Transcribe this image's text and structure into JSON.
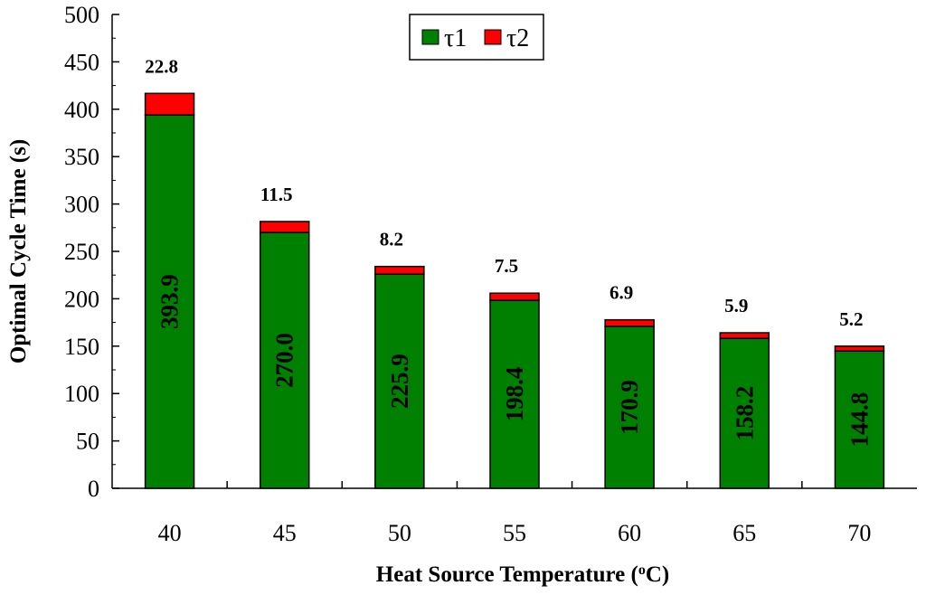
{
  "chart_data": {
    "type": "bar",
    "stacked": true,
    "title": "",
    "xlabel": "Heat Source Temperature",
    "xlabel_unit_prefix": "(",
    "xlabel_unit_sup": "o",
    "xlabel_unit_suffix": "C)",
    "ylabel": "Optimal Cycle Time (s)",
    "ylim": [
      0,
      500
    ],
    "ytick_step": 50,
    "yticks": [
      "0",
      "50",
      "100",
      "150",
      "200",
      "250",
      "300",
      "350",
      "400",
      "450",
      "500"
    ],
    "categories": [
      "40",
      "45",
      "50",
      "55",
      "60",
      "65",
      "70"
    ],
    "series": [
      {
        "name": "τ1",
        "color": "#008000",
        "values": [
          393.9,
          270.0,
          225.9,
          198.4,
          170.9,
          158.2,
          144.8
        ],
        "labels": [
          "393.9",
          "270.0",
          "225.9",
          "198.4",
          "170.9",
          "158.2",
          "144.8"
        ]
      },
      {
        "name": "τ2",
        "color": "#ff0000",
        "values": [
          22.8,
          11.5,
          8.2,
          7.5,
          6.9,
          5.9,
          5.2
        ],
        "labels": [
          "22.8",
          "11.5",
          "8.2",
          "7.5",
          "6.9",
          "5.9",
          "5.2"
        ]
      }
    ],
    "legend": {
      "position": "top-center",
      "entries": [
        "τ1",
        "τ2"
      ]
    },
    "grid": false
  }
}
